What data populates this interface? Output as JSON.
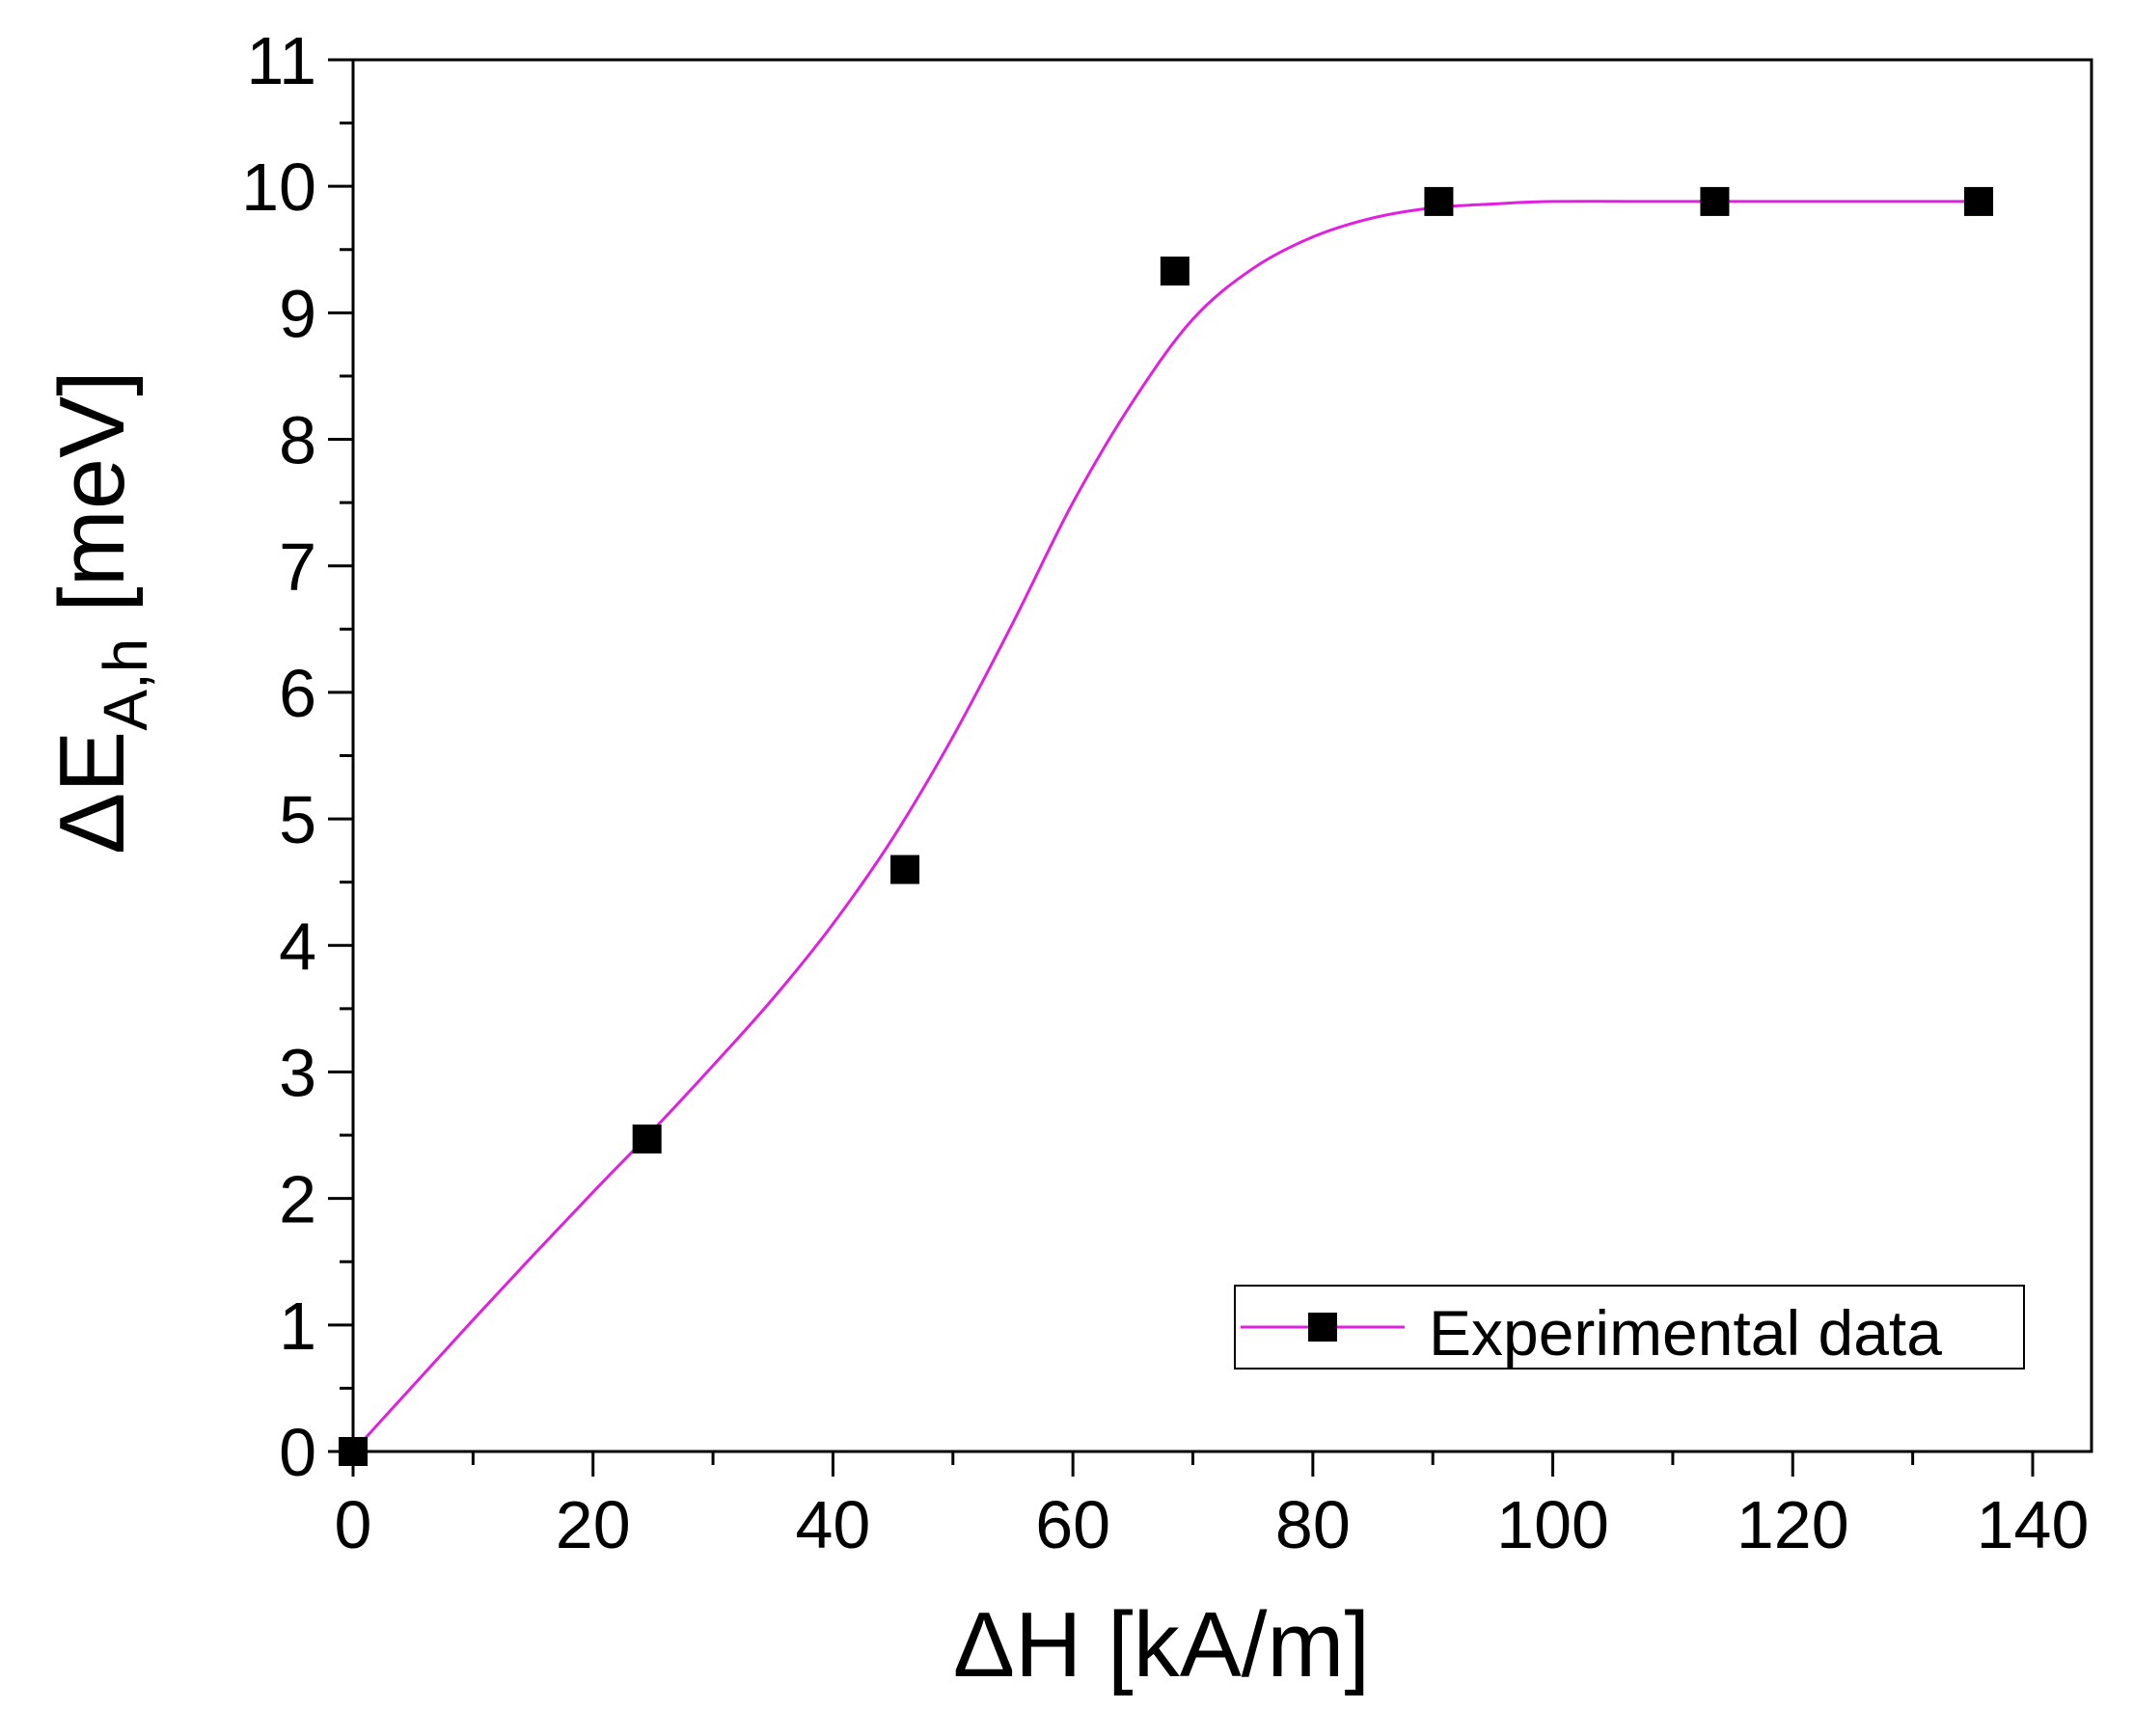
{
  "chart_data": {
    "type": "scatter",
    "xlabel": "ΔH [kA/m]",
    "ylabel": {
      "prefix": "ΔE",
      "subscript": "A,h",
      "suffix": " [meV]"
    },
    "xlim": [
      0,
      140
    ],
    "ylim": [
      0,
      11
    ],
    "xticks": [
      "0",
      "20",
      "40",
      "60",
      "80",
      "100",
      "120",
      "140"
    ],
    "yticks": [
      "0",
      "1",
      "2",
      "3",
      "4",
      "5",
      "6",
      "7",
      "8",
      "9",
      "10",
      "11"
    ],
    "grid": false,
    "legend_position": "bottom-right",
    "colors": {
      "fit_line": "#e020e0",
      "marker": "#000000",
      "axes": "#000000",
      "background": "#ffffff"
    },
    "series": [
      {
        "name": "Experimental data",
        "kind": "scatter+line",
        "points": [
          [
            0,
            0
          ],
          [
            24.5,
            2.47
          ],
          [
            46,
            4.6
          ],
          [
            68.5,
            9.33
          ],
          [
            90.5,
            9.88
          ],
          [
            113.5,
            9.88
          ],
          [
            135.5,
            9.88
          ]
        ]
      }
    ],
    "fit_curve": [
      [
        0,
        0
      ],
      [
        5,
        0.52
      ],
      [
        10,
        1.04
      ],
      [
        15,
        1.55
      ],
      [
        20,
        2.05
      ],
      [
        25,
        2.54
      ],
      [
        30,
        3.05
      ],
      [
        35,
        3.58
      ],
      [
        40,
        4.17
      ],
      [
        45,
        4.85
      ],
      [
        50,
        5.65
      ],
      [
        55,
        6.55
      ],
      [
        60,
        7.5
      ],
      [
        65,
        8.3
      ],
      [
        70,
        8.95
      ],
      [
        75,
        9.35
      ],
      [
        80,
        9.6
      ],
      [
        85,
        9.75
      ],
      [
        90,
        9.83
      ],
      [
        95,
        9.86
      ],
      [
        100,
        9.88
      ],
      [
        110,
        9.88
      ],
      [
        120,
        9.88
      ],
      [
        130,
        9.88
      ],
      [
        135.5,
        9.88
      ]
    ]
  }
}
